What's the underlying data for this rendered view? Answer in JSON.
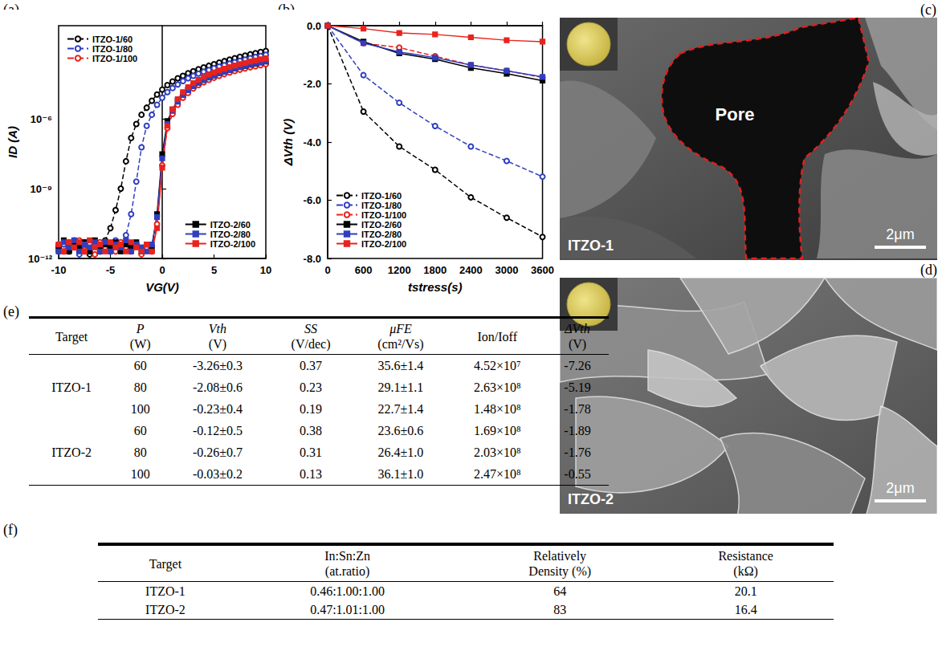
{
  "chart_data": [
    {
      "panel": "(a)",
      "type": "line",
      "x_label": "VG(V)",
      "y_label": "ID (A)",
      "log": "y",
      "grid": false,
      "legend": [
        "top-left",
        "bottom-right"
      ],
      "xlim": [
        -10,
        10
      ],
      "xticks": [
        -10,
        -5,
        0,
        5,
        10
      ],
      "ylim": [
        1e-12,
        0.01
      ],
      "yticks": [
        {
          "value": 1e-12,
          "label": "10⁻¹²"
        },
        {
          "value": 1e-09,
          "label": "10⁻⁹"
        },
        {
          "value": 1e-06,
          "label": "10⁻⁶"
        }
      ],
      "x": [
        -10,
        -9.5,
        -9,
        -8.5,
        -8,
        -7.5,
        -7,
        -6.5,
        -6,
        -5.5,
        -5,
        -4.5,
        -4,
        -3.5,
        -3,
        -2.5,
        -2,
        -1.5,
        -1,
        -0.5,
        0,
        0.5,
        1,
        1.5,
        2,
        2.5,
        3,
        3.5,
        4,
        4.5,
        5,
        5.5,
        6,
        6.5,
        7,
        7.5,
        8,
        8.5,
        9,
        9.5,
        10
      ],
      "series": [
        {
          "name": "ITZO-1/60",
          "color": "#000000",
          "marker": "open_circle",
          "line_style": "dashed",
          "values": [
            3e-12,
            5e-12,
            2e-12,
            5e-12,
            2e-12,
            4e-12,
            1.5e-12,
            5e-12,
            2e-12,
            6e-12,
            2e-11,
            1.2e-10,
            1e-09,
            1.5e-08,
            1.5e-07,
            6e-07,
            1.5e-06,
            3e-06,
            6e-06,
            1.1e-05,
            1.8e-05,
            2.8e-05,
            4e-05,
            5.5e-05,
            7e-05,
            9e-05,
            0.00011,
            0.000135,
            0.00016,
            0.00019,
            0.00022,
            0.00026,
            0.0003,
            0.00035,
            0.0004,
            0.00046,
            0.00052,
            0.00059,
            0.00066,
            0.00074,
            0.00082
          ]
        },
        {
          "name": "ITZO-1/80",
          "color": "#2f3fbf",
          "marker": "open_circle",
          "line_style": "dashed",
          "values": [
            2e-12,
            4e-12,
            3e-12,
            6e-12,
            1.5e-12,
            5e-12,
            2e-12,
            4e-12,
            3e-12,
            5e-12,
            2e-12,
            6e-12,
            3e-12,
            1e-11,
            8e-11,
            2e-09,
            6e-08,
            5e-07,
            1.5e-06,
            4e-06,
            8e-06,
            1.4e-05,
            2.1e-05,
            3e-05,
            4.2e-05,
            5.5e-05,
            7e-05,
            8.7e-05,
            0.000105,
            0.000125,
            0.00015,
            0.000175,
            0.0002,
            0.000235,
            0.00027,
            0.00031,
            0.00035,
            0.0004,
            0.00045,
            0.0005,
            0.00056
          ]
        },
        {
          "name": "ITZO-1/100",
          "color": "#e8231d",
          "marker": "open_circle",
          "line_style": "dashed",
          "values": [
            4e-12,
            2e-12,
            5e-12,
            3e-12,
            6e-12,
            2e-12,
            4e-12,
            1.5e-12,
            5e-12,
            3e-12,
            4e-12,
            2e-12,
            5e-12,
            3e-12,
            2e-12,
            4e-12,
            1.5e-12,
            3e-12,
            2e-12,
            3e-11,
            1e-08,
            4e-07,
            1.6e-06,
            4e-06,
            8e-06,
            1.3e-05,
            2e-05,
            2.8e-05,
            3.7e-05,
            4.7e-05,
            5.8e-05,
            7e-05,
            8.3e-05,
            9.7e-05,
            0.000112,
            0.000128,
            0.000145,
            0.000163,
            0.000182,
            0.0002,
            0.00022
          ]
        },
        {
          "name": "ITZO-2/60",
          "color": "#000000",
          "marker": "square",
          "line_style": "solid",
          "values": [
            3e-12,
            6e-12,
            2e-12,
            4e-12,
            3e-12,
            5e-12,
            2e-12,
            6e-12,
            2.5e-12,
            4e-12,
            3e-12,
            5e-12,
            2e-12,
            4e-12,
            3e-12,
            5e-12,
            2e-12,
            4e-12,
            3e-12,
            8e-11,
            3e-08,
            8e-07,
            2.5e-06,
            6e-06,
            1.1e-05,
            1.8e-05,
            2.6e-05,
            3.6e-05,
            4.7e-05,
            6e-05,
            7.4e-05,
            9e-05,
            0.000107,
            0.000125,
            0.000145,
            0.000165,
            0.000187,
            0.00021,
            0.000235,
            0.00026,
            0.00029
          ]
        },
        {
          "name": "ITZO-2/80",
          "color": "#2f3fbf",
          "marker": "square",
          "line_style": "solid",
          "values": [
            2e-12,
            5e-12,
            3e-12,
            6e-12,
            2e-12,
            4e-12,
            3e-12,
            5e-12,
            2e-12,
            5e-12,
            2e-12,
            4e-12,
            3e-12,
            6e-12,
            2e-12,
            4e-12,
            3e-12,
            2e-12,
            4e-12,
            6e-11,
            2e-08,
            6e-07,
            2.2e-06,
            5.5e-06,
            1.05e-05,
            1.7e-05,
            2.5e-05,
            3.5e-05,
            4.6e-05,
            5.9e-05,
            7.3e-05,
            8.9e-05,
            0.000106,
            0.000125,
            0.000146,
            0.000168,
            0.000192,
            0.000217,
            0.000244,
            0.000272,
            0.0003
          ]
        },
        {
          "name": "ITZO-2/100",
          "color": "#e8231d",
          "marker": "square",
          "line_style": "solid",
          "values": [
            4e-12,
            2e-12,
            5e-12,
            3e-12,
            5e-12,
            2e-12,
            6e-12,
            3e-12,
            4e-12,
            2e-12,
            5e-12,
            3e-12,
            4e-12,
            2e-12,
            5e-12,
            3e-12,
            2e-12,
            4e-12,
            2e-12,
            2e-11,
            8e-09,
            5e-07,
            2.5e-06,
            7e-06,
            1.4e-05,
            2.3e-05,
            3.4e-05,
            4.7e-05,
            6.2e-05,
            7.9e-05,
            9.8e-05,
            0.000119,
            0.000142,
            0.000167,
            0.000194,
            0.000223,
            0.000254,
            0.000287,
            0.000322,
            0.000359,
            0.0004
          ]
        }
      ]
    },
    {
      "panel": "(b)",
      "type": "line",
      "x_label": "tstress(s)",
      "y_label": "ΔVth (V)",
      "grid": false,
      "legend": "bottom-left",
      "xlim": [
        0,
        3600
      ],
      "xticks": [
        0,
        600,
        1200,
        1800,
        2400,
        3000,
        3600
      ],
      "ylim": [
        -8,
        0
      ],
      "yticks": [
        {
          "value": -8,
          "label": "-8.0"
        },
        {
          "value": -6,
          "label": "-6.0"
        },
        {
          "value": -4,
          "label": "-4.0"
        },
        {
          "value": -2,
          "label": "-2.0"
        },
        {
          "value": 0,
          "label": "0.0"
        }
      ],
      "x": [
        0,
        600,
        1200,
        1800,
        2400,
        3000,
        3600
      ],
      "series": [
        {
          "name": "ITZO-1/60",
          "color": "#000000",
          "marker": "open_circle",
          "line_style": "dashed",
          "values": [
            0,
            -2.95,
            -4.15,
            -4.95,
            -5.9,
            -6.6,
            -7.26
          ]
        },
        {
          "name": "ITZO-1/80",
          "color": "#2f3fbf",
          "marker": "open_circle",
          "line_style": "dashed",
          "values": [
            0,
            -1.7,
            -2.65,
            -3.45,
            -4.15,
            -4.65,
            -5.19
          ]
        },
        {
          "name": "ITZO-1/100",
          "color": "#e8231d",
          "marker": "open_circle",
          "line_style": "dashed",
          "values": [
            0,
            -0.6,
            -0.75,
            -1.05,
            -1.35,
            -1.55,
            -1.78
          ]
        },
        {
          "name": "ITZO-2/60",
          "color": "#000000",
          "marker": "square",
          "line_style": "solid",
          "values": [
            0,
            -0.55,
            -0.95,
            -1.15,
            -1.45,
            -1.65,
            -1.89
          ]
        },
        {
          "name": "ITZO-2/80",
          "color": "#2f3fbf",
          "marker": "square",
          "line_style": "solid",
          "values": [
            0,
            -0.6,
            -0.9,
            -1.1,
            -1.35,
            -1.55,
            -1.76
          ]
        },
        {
          "name": "ITZO-2/100",
          "color": "#e8231d",
          "marker": "square",
          "line_style": "solid",
          "values": [
            0,
            -0.1,
            -0.25,
            -0.3,
            -0.4,
            -0.5,
            -0.55
          ]
        }
      ]
    }
  ],
  "images": [
    {
      "panel": "(c)",
      "label": "ITZO-1",
      "annotation": "Pore",
      "scale_bar": "2μm"
    },
    {
      "panel": "(d)",
      "label": "ITZO-2",
      "scale_bar": "2μm"
    }
  ],
  "tables": [
    {
      "panel": "(e)",
      "columns": [
        [
          "Target"
        ],
        [
          "P",
          "(W)"
        ],
        [
          "Vth",
          "(V)"
        ],
        [
          "SS",
          "(V/dec)"
        ],
        [
          "μFE",
          "(cm²/Vs)"
        ],
        [
          "Ion/Ioff"
        ],
        [
          "ΔVth",
          "(V)"
        ]
      ],
      "groups": [
        {
          "target": "ITZO-1",
          "rows": [
            [
              "60",
              "-3.26±0.3",
              "0.37",
              "35.6±1.4",
              "4.52×10⁷",
              "-7.26"
            ],
            [
              "80",
              "-2.08±0.6",
              "0.23",
              "29.1±1.1",
              "2.63×10⁸",
              "-5.19"
            ],
            [
              "100",
              "-0.23±0.4",
              "0.19",
              "22.7±1.4",
              "1.48×10⁸",
              "-1.78"
            ]
          ]
        },
        {
          "target": "ITZO-2",
          "rows": [
            [
              "60",
              "-0.12±0.5",
              "0.38",
              "23.6±0.6",
              "1.69×10⁸",
              "-1.89"
            ],
            [
              "80",
              "-0.26±0.7",
              "0.31",
              "26.4±1.0",
              "2.03×10⁸",
              "-1.76"
            ],
            [
              "100",
              "-0.03±0.2",
              "0.13",
              "36.1±1.0",
              "2.47×10⁸",
              "-0.55"
            ]
          ]
        }
      ]
    },
    {
      "panel": "(f)",
      "columns": [
        [
          "Target"
        ],
        [
          "In:Sn:Zn",
          "(at.ratio)"
        ],
        [
          "Relatively",
          "Density (%)"
        ],
        [
          "Resistance",
          "(kΩ)"
        ]
      ],
      "rows": [
        [
          "ITZO-1",
          "0.46:1.00:1.00",
          "64",
          "20.1"
        ],
        [
          "ITZO-2",
          "0.47:1.01:1.00",
          "83",
          "16.4"
        ]
      ]
    }
  ]
}
